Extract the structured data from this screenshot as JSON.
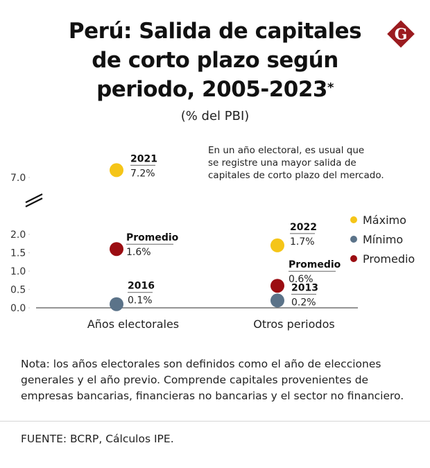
{
  "header": {
    "title_lines": [
      "Perú: Salida de capitales",
      "de corto plazo según",
      "periodo, 2005-2023"
    ],
    "title_asterisk": "*",
    "subtitle": "(% del PBI)",
    "logo_letter": "G",
    "logo_color": "#9b1b1f"
  },
  "annotation": {
    "lines": [
      "En un año electoral, es usual que",
      "se registre una mayor salida de",
      "capitales de corto plazo del mercado."
    ]
  },
  "legend": {
    "items": [
      {
        "label": "Máximo",
        "color": "#f5c518"
      },
      {
        "label": "Mínimo",
        "color": "#5b7389"
      },
      {
        "label": "Promedio",
        "color": "#9b0d12"
      }
    ]
  },
  "chart_data": {
    "type": "scatter",
    "title": "Perú: Salida de capitales de corto plazo según periodo, 2005-2023*",
    "subtitle": "(% del PBI)",
    "xlabel": "",
    "ylabel": "% del PBI",
    "categories": [
      "Años electorales",
      "Otros periodos"
    ],
    "y_ticks": [
      "0.0",
      "0.5",
      "1.0",
      "1.5",
      "2.0",
      "7.0"
    ],
    "ylim": [
      0,
      7.2
    ],
    "axis_break": "between 2.0 and 7.0",
    "grid": false,
    "legend_position": "right",
    "series": [
      {
        "name": "Máximo",
        "color": "#f5c518",
        "values": [
          7.2,
          1.7
        ],
        "labels": [
          {
            "title": "2021",
            "value": "7.2%"
          },
          {
            "title": "2022",
            "value": "1.7%"
          }
        ]
      },
      {
        "name": "Mínimo",
        "color": "#5b7389",
        "values": [
          0.1,
          0.2
        ],
        "labels": [
          {
            "title": "2016",
            "value": "0.1%"
          },
          {
            "title": "2013",
            "value": "0.2%"
          }
        ]
      },
      {
        "name": "Promedio",
        "color": "#9b0d12",
        "values": [
          1.6,
          0.6
        ],
        "labels": [
          {
            "title": "Promedio",
            "value": "1.6%"
          },
          {
            "title": "Promedio",
            "value": "0.6%"
          }
        ]
      }
    ]
  },
  "footer": {
    "note_lines": [
      "Nota: los años electorales son definidos como el año de elecciones",
      "generales y el año previo. Comprende capitales provenientes de",
      "empresas bancarias, financieras no bancarias y el sector no financiero."
    ],
    "source": "FUENTE: BCRP, Cálculos IPE."
  }
}
